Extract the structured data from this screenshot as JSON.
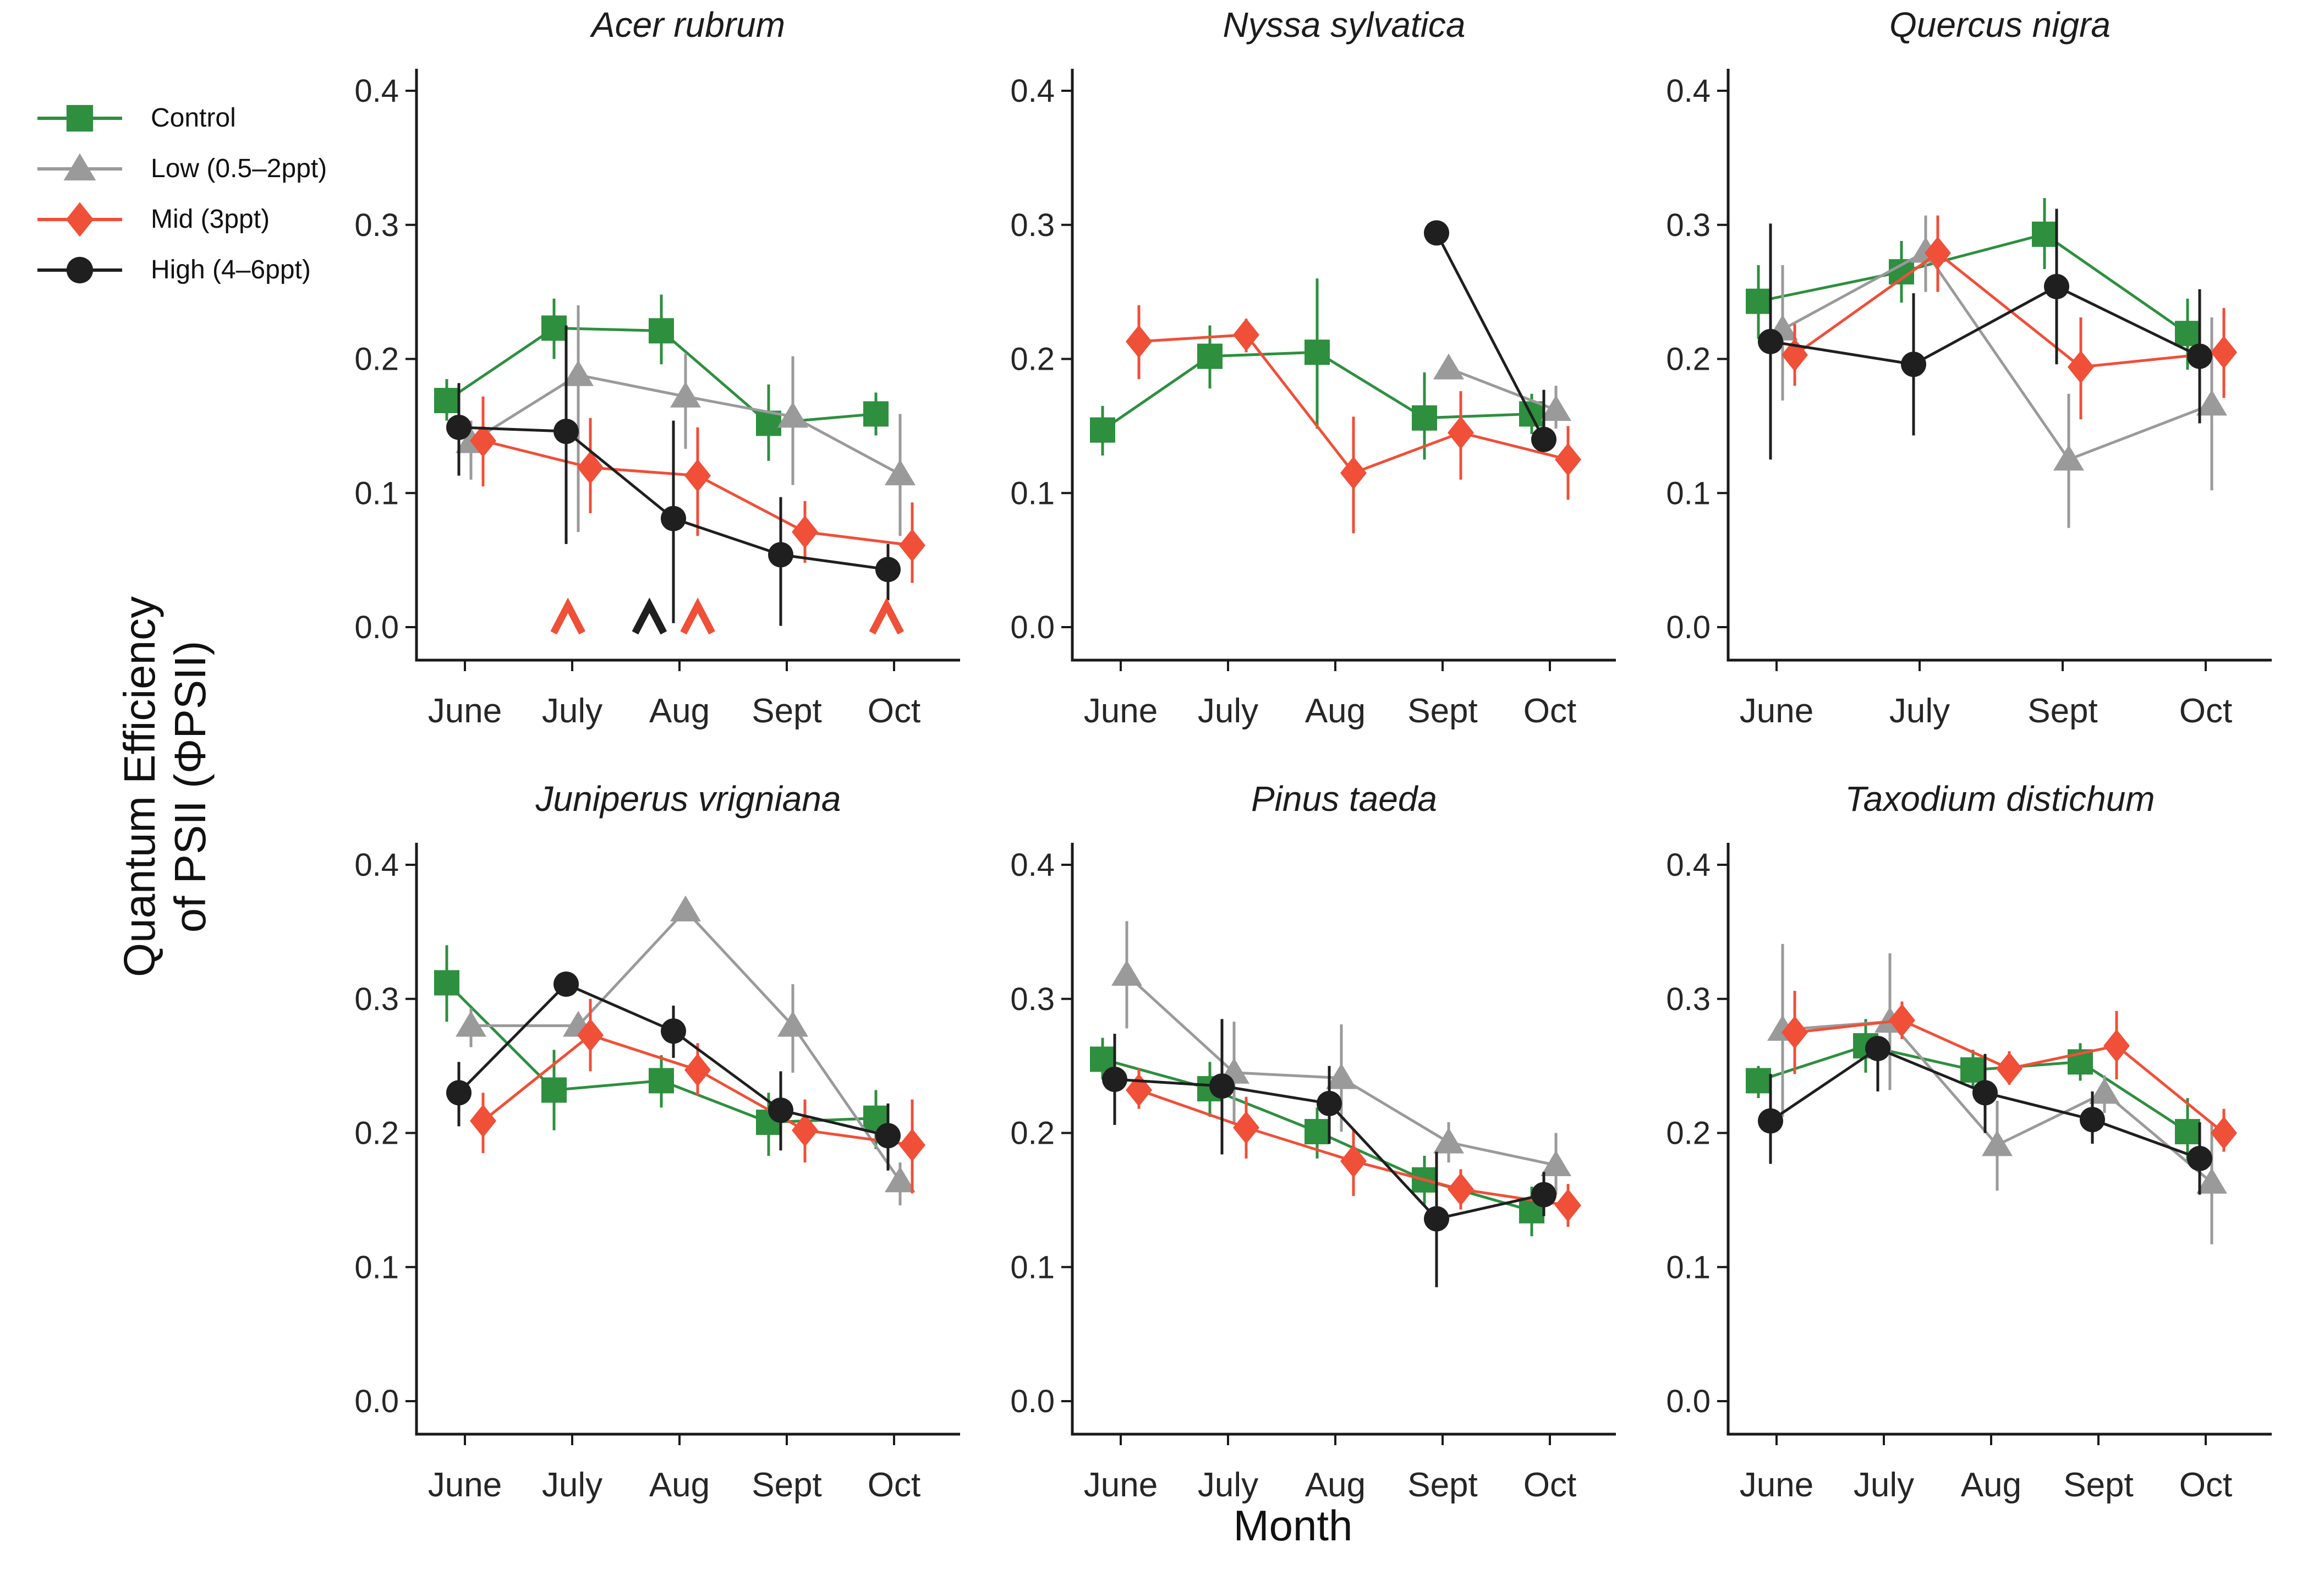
{
  "figure": {
    "ylabel_line1": "Quantum Efficiency",
    "ylabel_line2": "of PSII (ΦPSII)",
    "xlabel": "Month"
  },
  "colors": {
    "control": "#2e8f3f",
    "low": "#9a9a9a",
    "mid": "#f04f38",
    "high": "#1f1f1f",
    "axis": "#1a1a1a"
  },
  "legend": {
    "position": "top-left",
    "items": [
      {
        "label": "Control",
        "shape": "square",
        "color": "#2e8f3f"
      },
      {
        "label": "Low (0.5–2ppt)",
        "shape": "triangle",
        "color": "#9a9a9a"
      },
      {
        "label": "Mid (3ppt)",
        "shape": "diamond",
        "color": "#f04f38"
      },
      {
        "label": "High (4–6ppt)",
        "shape": "circle",
        "color": "#1f1f1f"
      }
    ]
  },
  "chart_data": [
    {
      "type": "line",
      "title": "Acer rubrum",
      "categories": [
        "June",
        "July",
        "Aug",
        "Sept",
        "Oct"
      ],
      "ylim": [
        0.0,
        0.4
      ],
      "yticks": [
        0.0,
        0.1,
        0.2,
        0.3,
        0.4
      ],
      "grid": false,
      "series": [
        {
          "name": "Control",
          "shape": "square",
          "color": "#2e8f3f",
          "dodge": -33,
          "values": [
            0.169,
            0.223,
            0.221,
            0.152,
            0.159
          ],
          "errors": [
            [
              0.154,
              0.185
            ],
            [
              0.2,
              0.245
            ],
            [
              0.196,
              0.248
            ],
            [
              0.124,
              0.181
            ],
            [
              0.143,
              0.175
            ]
          ]
        },
        {
          "name": "Low",
          "shape": "triangle",
          "color": "#9a9a9a",
          "dodge": 11,
          "values": [
            0.138,
            0.188,
            0.172,
            0.157,
            0.114
          ],
          "errors": [
            [
              0.11,
              0.154
            ],
            [
              0.071,
              0.24
            ],
            [
              0.133,
              0.204
            ],
            [
              0.106,
              0.202
            ],
            [
              0.068,
              0.159
            ]
          ]
        },
        {
          "name": "Mid",
          "shape": "diamond",
          "color": "#f04f38",
          "dodge": 33,
          "values": [
            0.139,
            0.119,
            0.113,
            0.071,
            0.061
          ],
          "errors": [
            [
              0.105,
              0.172
            ],
            [
              0.085,
              0.156
            ],
            [
              0.068,
              0.149
            ],
            [
              0.048,
              0.094
            ],
            [
              0.033,
              0.093
            ]
          ]
        },
        {
          "name": "High",
          "shape": "circle",
          "color": "#1f1f1f",
          "dodge": -11,
          "values": [
            0.149,
            0.146,
            0.081,
            0.054,
            0.043
          ],
          "errors": [
            [
              0.113,
              0.182
            ],
            [
              0.062,
              0.225
            ],
            [
              0.003,
              0.154
            ],
            [
              0.001,
              0.097
            ],
            [
              0.02,
              0.062
            ]
          ]
        }
      ],
      "sig_markers": [
        {
          "x": 0.96,
          "y": 0.006,
          "symbol": "^",
          "color": "#f04f38"
        },
        {
          "x": 1.72,
          "y": 0.006,
          "symbol": "^",
          "color": "#1f1f1f"
        },
        {
          "x": 2.17,
          "y": 0.006,
          "symbol": "^",
          "color": "#f04f38"
        },
        {
          "x": 3.93,
          "y": 0.006,
          "symbol": "^",
          "color": "#f04f38"
        }
      ]
    },
    {
      "type": "line",
      "title": "Nyssa sylvatica",
      "categories": [
        "June",
        "July",
        "Aug",
        "Sept",
        "Oct"
      ],
      "ylim": [
        0.0,
        0.4
      ],
      "yticks": [
        0.0,
        0.1,
        0.2,
        0.3,
        0.4
      ],
      "grid": false,
      "series": [
        {
          "name": "Control",
          "shape": "square",
          "color": "#2e8f3f",
          "dodge": -33,
          "values": [
            0.147,
            0.202,
            0.205,
            0.156,
            0.159
          ],
          "errors": [
            [
              0.128,
              0.165
            ],
            [
              0.178,
              0.225
            ],
            [
              0.148,
              0.26
            ],
            [
              0.125,
              0.19
            ],
            [
              0.144,
              0.174
            ]
          ]
        },
        {
          "name": "Low",
          "shape": "triangle",
          "color": "#9a9a9a",
          "dodge": 11,
          "values": [
            null,
            null,
            null,
            0.193,
            0.162
          ],
          "errors": [
            null,
            null,
            null,
            null,
            [
              0.148,
              0.18
            ]
          ]
        },
        {
          "name": "Mid",
          "shape": "diamond",
          "color": "#f04f38",
          "dodge": 33,
          "values": [
            0.213,
            0.218,
            0.115,
            0.145,
            0.125
          ],
          "errors": [
            [
              0.185,
              0.24
            ],
            [
              0.205,
              0.23
            ],
            [
              0.07,
              0.157
            ],
            [
              0.11,
              0.176
            ],
            [
              0.095,
              0.15
            ]
          ]
        },
        {
          "name": "High",
          "shape": "circle",
          "color": "#1f1f1f",
          "dodge": -11,
          "values": [
            null,
            null,
            null,
            0.294,
            0.14
          ],
          "errors": [
            null,
            null,
            null,
            null,
            [
              0.135,
              0.177
            ]
          ]
        }
      ],
      "sig_markers": []
    },
    {
      "type": "line",
      "title": "Quercus nigra",
      "categories": [
        "June",
        "July",
        "Sept",
        "Oct"
      ],
      "ylim": [
        0.0,
        0.4
      ],
      "yticks": [
        0.0,
        0.1,
        0.2,
        0.3,
        0.4
      ],
      "grid": false,
      "series": [
        {
          "name": "Control",
          "shape": "square",
          "color": "#2e8f3f",
          "dodge": -33,
          "values": [
            0.243,
            0.265,
            0.293,
            0.219
          ],
          "errors": [
            [
              0.215,
              0.27
            ],
            [
              0.242,
              0.288
            ],
            [
              0.267,
              0.32
            ],
            [
              0.192,
              0.245
            ]
          ]
        },
        {
          "name": "Low",
          "shape": "triangle",
          "color": "#9a9a9a",
          "dodge": 11,
          "values": [
            0.222,
            0.28,
            0.125,
            0.166
          ],
          "errors": [
            [
              0.169,
              0.27
            ],
            [
              0.25,
              0.307
            ],
            [
              0.074,
              0.174
            ],
            [
              0.102,
              0.231
            ]
          ]
        },
        {
          "name": "Mid",
          "shape": "diamond",
          "color": "#f04f38",
          "dodge": 33,
          "values": [
            0.203,
            0.279,
            0.194,
            0.205
          ],
          "errors": [
            [
              0.18,
              0.226
            ],
            [
              0.25,
              0.307
            ],
            [
              0.155,
              0.231
            ],
            [
              0.171,
              0.238
            ]
          ]
        },
        {
          "name": "High",
          "shape": "circle",
          "color": "#1f1f1f",
          "dodge": -11,
          "values": [
            0.213,
            0.196,
            0.254,
            0.202
          ],
          "errors": [
            [
              0.125,
              0.301
            ],
            [
              0.143,
              0.249
            ],
            [
              0.196,
              0.312
            ],
            [
              0.152,
              0.252
            ]
          ]
        }
      ],
      "sig_markers": []
    },
    {
      "type": "line",
      "title": "Juniperus vrigniana",
      "categories": [
        "June",
        "July",
        "Aug",
        "Sept",
        "Oct"
      ],
      "ylim": [
        0.0,
        0.4
      ],
      "yticks": [
        0.0,
        0.1,
        0.2,
        0.3,
        0.4
      ],
      "grid": false,
      "series": [
        {
          "name": "Control",
          "shape": "square",
          "color": "#2e8f3f",
          "dodge": -33,
          "values": [
            0.312,
            0.232,
            0.239,
            0.208,
            0.211
          ],
          "errors": [
            [
              0.283,
              0.34
            ],
            [
              0.202,
              0.262
            ],
            [
              0.219,
              0.258
            ],
            [
              0.183,
              0.23
            ],
            [
              0.188,
              0.232
            ]
          ]
        },
        {
          "name": "Low",
          "shape": "triangle",
          "color": "#9a9a9a",
          "dodge": 11,
          "values": [
            0.28,
            0.28,
            0.366,
            0.28,
            0.164
          ],
          "errors": [
            [
              0.264,
              0.293
            ],
            null,
            null,
            [
              0.245,
              0.311
            ],
            [
              0.146,
              0.178
            ]
          ]
        },
        {
          "name": "Mid",
          "shape": "diamond",
          "color": "#f04f38",
          "dodge": 33,
          "values": [
            0.209,
            0.273,
            0.247,
            0.202,
            0.191
          ],
          "errors": [
            [
              0.185,
              0.23
            ],
            [
              0.246,
              0.3
            ],
            [
              0.228,
              0.267
            ],
            [
              0.178,
              0.225
            ],
            [
              0.155,
              0.225
            ]
          ]
        },
        {
          "name": "High",
          "shape": "circle",
          "color": "#1f1f1f",
          "dodge": -11,
          "values": [
            0.23,
            0.311,
            0.276,
            0.217,
            0.198
          ],
          "errors": [
            [
              0.205,
              0.253
            ],
            null,
            [
              0.256,
              0.295
            ],
            [
              0.187,
              0.246
            ],
            [
              0.172,
              0.222
            ]
          ]
        }
      ],
      "sig_markers": []
    },
    {
      "type": "line",
      "title": "Pinus taeda",
      "categories": [
        "June",
        "July",
        "Aug",
        "Sept",
        "Oct"
      ],
      "ylim": [
        0.0,
        0.4
      ],
      "yticks": [
        0.0,
        0.1,
        0.2,
        0.3,
        0.4
      ],
      "grid": false,
      "series": [
        {
          "name": "Control",
          "shape": "square",
          "color": "#2e8f3f",
          "dodge": -33,
          "values": [
            0.255,
            0.233,
            0.201,
            0.165,
            0.142
          ],
          "errors": [
            [
              0.24,
              0.271
            ],
            [
              0.212,
              0.253
            ],
            [
              0.181,
              0.219
            ],
            [
              0.146,
              0.183
            ],
            [
              0.123,
              0.16
            ]
          ]
        },
        {
          "name": "Low",
          "shape": "triangle",
          "color": "#9a9a9a",
          "dodge": 11,
          "values": [
            0.318,
            0.245,
            0.241,
            0.193,
            0.176
          ],
          "errors": [
            [
              0.278,
              0.358
            ],
            [
              0.208,
              0.283
            ],
            [
              0.201,
              0.281
            ],
            [
              0.178,
              0.208
            ],
            [
              0.154,
              0.2
            ]
          ]
        },
        {
          "name": "Mid",
          "shape": "diamond",
          "color": "#f04f38",
          "dodge": 33,
          "values": [
            0.232,
            0.204,
            0.179,
            0.158,
            0.146
          ],
          "errors": [
            [
              0.218,
              0.248
            ],
            [
              0.181,
              0.227
            ],
            [
              0.153,
              0.203
            ],
            [
              0.143,
              0.173
            ],
            [
              0.13,
              0.162
            ]
          ]
        },
        {
          "name": "High",
          "shape": "circle",
          "color": "#1f1f1f",
          "dodge": -11,
          "values": [
            0.24,
            0.235,
            0.222,
            0.136,
            0.154
          ],
          "errors": [
            [
              0.206,
              0.274
            ],
            [
              0.184,
              0.285
            ],
            [
              0.192,
              0.25
            ],
            [
              0.085,
              0.186
            ],
            [
              0.138,
              0.171
            ]
          ]
        }
      ],
      "sig_markers": []
    },
    {
      "type": "line",
      "title": "Taxodium distichum",
      "categories": [
        "June",
        "July",
        "Aug",
        "Sept",
        "Oct"
      ],
      "ylim": [
        0.0,
        0.4
      ],
      "yticks": [
        0.0,
        0.1,
        0.2,
        0.3,
        0.4
      ],
      "grid": false,
      "series": [
        {
          "name": "Control",
          "shape": "square",
          "color": "#2e8f3f",
          "dodge": -33,
          "values": [
            0.239,
            0.265,
            0.247,
            0.253,
            0.201
          ],
          "errors": [
            [
              0.226,
              0.25
            ],
            [
              0.245,
              0.285
            ],
            [
              0.234,
              0.262
            ],
            [
              0.239,
              0.267
            ],
            [
              0.179,
              0.226
            ]
          ]
        },
        {
          "name": "Low",
          "shape": "triangle",
          "color": "#9a9a9a",
          "dodge": 11,
          "values": [
            0.277,
            0.283,
            0.191,
            0.23,
            0.163
          ],
          "errors": [
            [
              0.212,
              0.341
            ],
            [
              0.232,
              0.334
            ],
            [
              0.157,
              0.224
            ],
            [
              0.215,
              0.243
            ],
            [
              0.117,
              0.208
            ]
          ]
        },
        {
          "name": "Mid",
          "shape": "diamond",
          "color": "#f04f38",
          "dodge": 33,
          "values": [
            0.275,
            0.284,
            0.248,
            0.265,
            0.2
          ],
          "errors": [
            [
              0.244,
              0.306
            ],
            [
              0.27,
              0.298
            ],
            [
              0.236,
              0.261
            ],
            [
              0.24,
              0.291
            ],
            [
              0.186,
              0.218
            ]
          ]
        },
        {
          "name": "High",
          "shape": "circle",
          "color": "#1f1f1f",
          "dodge": -11,
          "values": [
            0.209,
            0.263,
            0.23,
            0.21,
            0.181
          ],
          "errors": [
            [
              0.177,
              0.244
            ],
            [
              0.231,
              0.269
            ],
            [
              0.2,
              0.259
            ],
            [
              0.192,
              0.231
            ],
            [
              0.154,
              0.208
            ]
          ]
        }
      ],
      "sig_markers": []
    }
  ]
}
